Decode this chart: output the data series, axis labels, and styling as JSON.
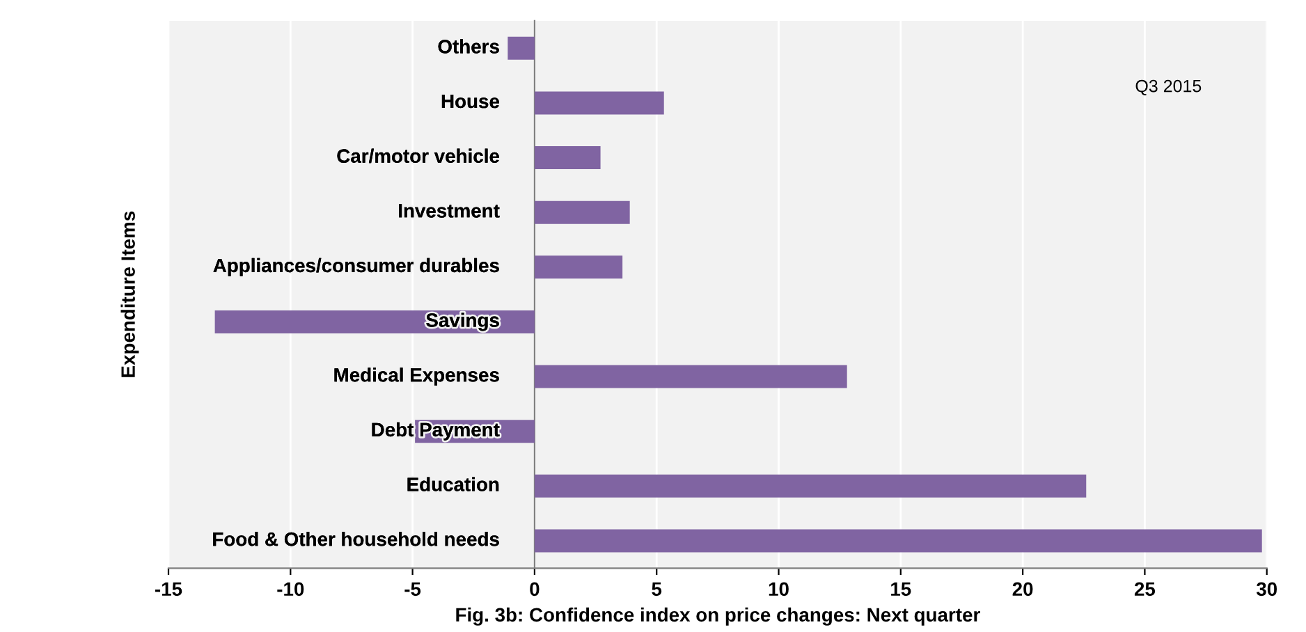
{
  "chart_data": {
    "type": "bar",
    "orientation": "horizontal",
    "xlabel": "Fig. 3b: Confidence index on price changes: Next quarter",
    "ylabel": "Expenditure Items",
    "categories": [
      "Others",
      "House",
      "Car/motor vehicle",
      "Investment",
      "Appliances/consumer durables",
      "Savings",
      "Medical Expenses",
      "Debt Payment",
      "Education",
      "Food & Other household needs"
    ],
    "values": [
      -1.1,
      5.3,
      2.7,
      3.9,
      3.6,
      -13.1,
      12.8,
      -4.9,
      22.6,
      29.8
    ],
    "color": "#8064a2",
    "xlim": [
      -15,
      30
    ],
    "xticks": [
      -15,
      -10,
      -5,
      0,
      5,
      10,
      15,
      20,
      25,
      30
    ],
    "grid": "x",
    "legend": false,
    "annotations": [
      "Q3 2015"
    ]
  }
}
